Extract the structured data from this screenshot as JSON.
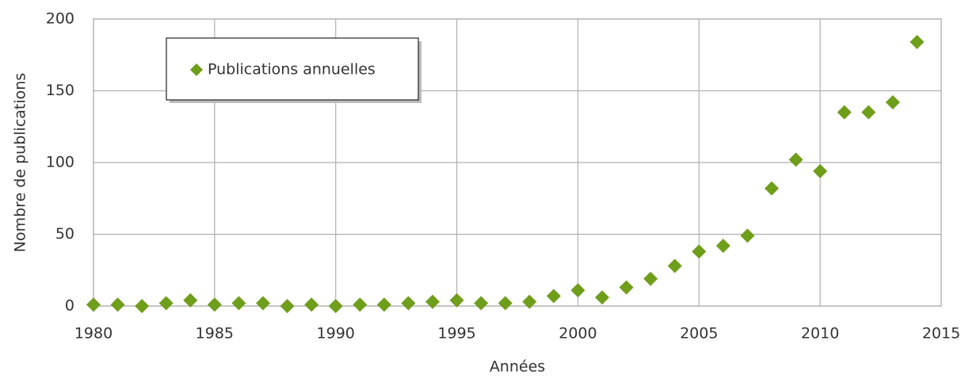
{
  "chart_data": {
    "type": "scatter",
    "x_label": "Années",
    "y_label": "Nombre de publications",
    "x": [
      1980,
      1981,
      1982,
      1983,
      1984,
      1985,
      1986,
      1987,
      1988,
      1989,
      1990,
      1991,
      1992,
      1993,
      1994,
      1995,
      1996,
      1997,
      1998,
      1999,
      2000,
      2001,
      2002,
      2003,
      2004,
      2005,
      2006,
      2007,
      2008,
      2009,
      2010,
      2011,
      2012,
      2013,
      2014
    ],
    "series": [
      {
        "name": "Publications annuelles",
        "color": "#6f9e1a",
        "values": [
          1,
          1,
          0,
          2,
          4,
          1,
          2,
          2,
          0,
          1,
          0,
          1,
          1,
          2,
          3,
          4,
          2,
          2,
          3,
          7,
          11,
          6,
          13,
          19,
          28,
          38,
          42,
          49,
          82,
          102,
          94,
          135,
          135,
          142,
          184
        ]
      }
    ],
    "xlim": [
      1980,
      2015
    ],
    "xticks": [
      1980,
      1985,
      1990,
      1995,
      2000,
      2005,
      2010,
      2015
    ],
    "ylim": [
      0,
      200
    ],
    "yticks": [
      0,
      50,
      100,
      150,
      200
    ],
    "grid": true,
    "legend": "upper left"
  }
}
